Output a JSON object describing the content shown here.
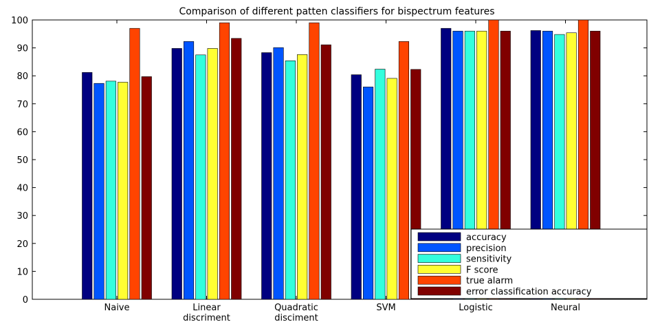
{
  "chart_data": {
    "type": "bar",
    "title": "Comparison of different patten classifiers for bispectrum features",
    "xlabel": "",
    "ylabel": "",
    "ylim": [
      0,
      100
    ],
    "yticks": [
      0,
      10,
      20,
      30,
      40,
      50,
      60,
      70,
      80,
      90,
      100
    ],
    "categories": [
      [
        "Naive"
      ],
      [
        "Linear",
        "discriment"
      ],
      [
        "Quadratic",
        "disciment"
      ],
      [
        "SVM"
      ],
      [
        "Logistic"
      ],
      [
        "Neural"
      ]
    ],
    "series": [
      {
        "name": "accuracy",
        "color": "#000080",
        "values": [
          81.2,
          89.8,
          88.3,
          80.4,
          97.0,
          96.2
        ]
      },
      {
        "name": "precision",
        "color": "#0055ff",
        "values": [
          77.3,
          92.3,
          90.1,
          76.0,
          96.0,
          96.0
        ]
      },
      {
        "name": "sensitivity",
        "color": "#33ffdd",
        "values": [
          78.1,
          87.5,
          85.4,
          82.4,
          96.0,
          94.8
        ]
      },
      {
        "name": "F score",
        "color": "#ffff33",
        "values": [
          77.7,
          89.8,
          87.6,
          79.1,
          96.0,
          95.4
        ]
      },
      {
        "name": "true alarm",
        "color": "#ff4400",
        "values": [
          97.0,
          99.0,
          99.0,
          92.3,
          100.0,
          100.0
        ]
      },
      {
        "name": "error classification accuracy",
        "color": "#800000",
        "values": [
          79.7,
          93.4,
          91.1,
          82.3,
          96.0,
          96.0
        ]
      }
    ],
    "grid": false,
    "legend": "bottom-right"
  }
}
